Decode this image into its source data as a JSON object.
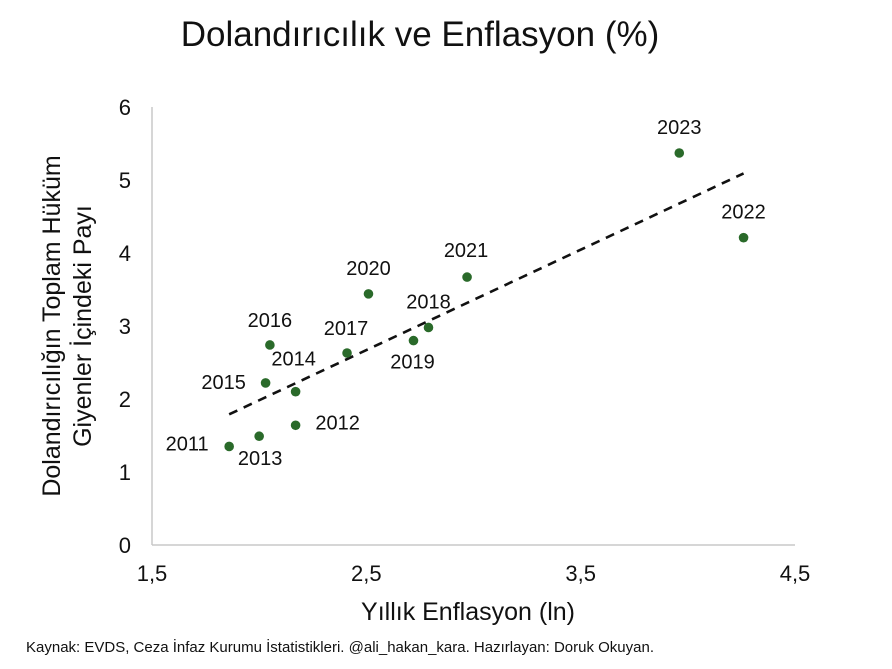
{
  "chart_data": {
    "type": "scatter",
    "title": "Dolandırıcılık ve Enflasyon (%)",
    "xlabel": "Yıllık Enflasyon (ln)",
    "ylabel_lines": [
      "Dolandırıcılığın Toplam Hüküm",
      "Giyenler İçindeki Payı"
    ],
    "xlim": [
      1.5,
      4.5
    ],
    "ylim": [
      0,
      6
    ],
    "x_ticks": [
      "1,5",
      "2,5",
      "3,5",
      "4,5"
    ],
    "y_ticks": [
      "0",
      "1",
      "2",
      "3",
      "4",
      "5",
      "6"
    ],
    "grid": false,
    "point_color": "#2a6a2a",
    "points": [
      {
        "label": "2011",
        "x": 1.86,
        "y": 1.35
      },
      {
        "label": "2012",
        "x": 2.17,
        "y": 1.64
      },
      {
        "label": "2013",
        "x": 2.0,
        "y": 1.49
      },
      {
        "label": "2014",
        "x": 2.17,
        "y": 2.1
      },
      {
        "label": "2015",
        "x": 2.03,
        "y": 2.22
      },
      {
        "label": "2016",
        "x": 2.05,
        "y": 2.74
      },
      {
        "label": "2017",
        "x": 2.41,
        "y": 2.63
      },
      {
        "label": "2018",
        "x": 2.79,
        "y": 2.98
      },
      {
        "label": "2019",
        "x": 2.72,
        "y": 2.8
      },
      {
        "label": "2020",
        "x": 2.51,
        "y": 3.44
      },
      {
        "label": "2021",
        "x": 2.97,
        "y": 3.67
      },
      {
        "label": "2022",
        "x": 4.26,
        "y": 4.21
      },
      {
        "label": "2023",
        "x": 3.96,
        "y": 5.37
      }
    ],
    "trendline": {
      "style": "dashed",
      "x": [
        1.86,
        4.26
      ],
      "y": [
        1.79,
        5.09
      ]
    }
  },
  "source_note": "Kaynak: EVDS, Ceza İnfaz Kurumu İstatistikleri. @ali_hakan_kara. Hazırlayan: Doruk Okuyan."
}
